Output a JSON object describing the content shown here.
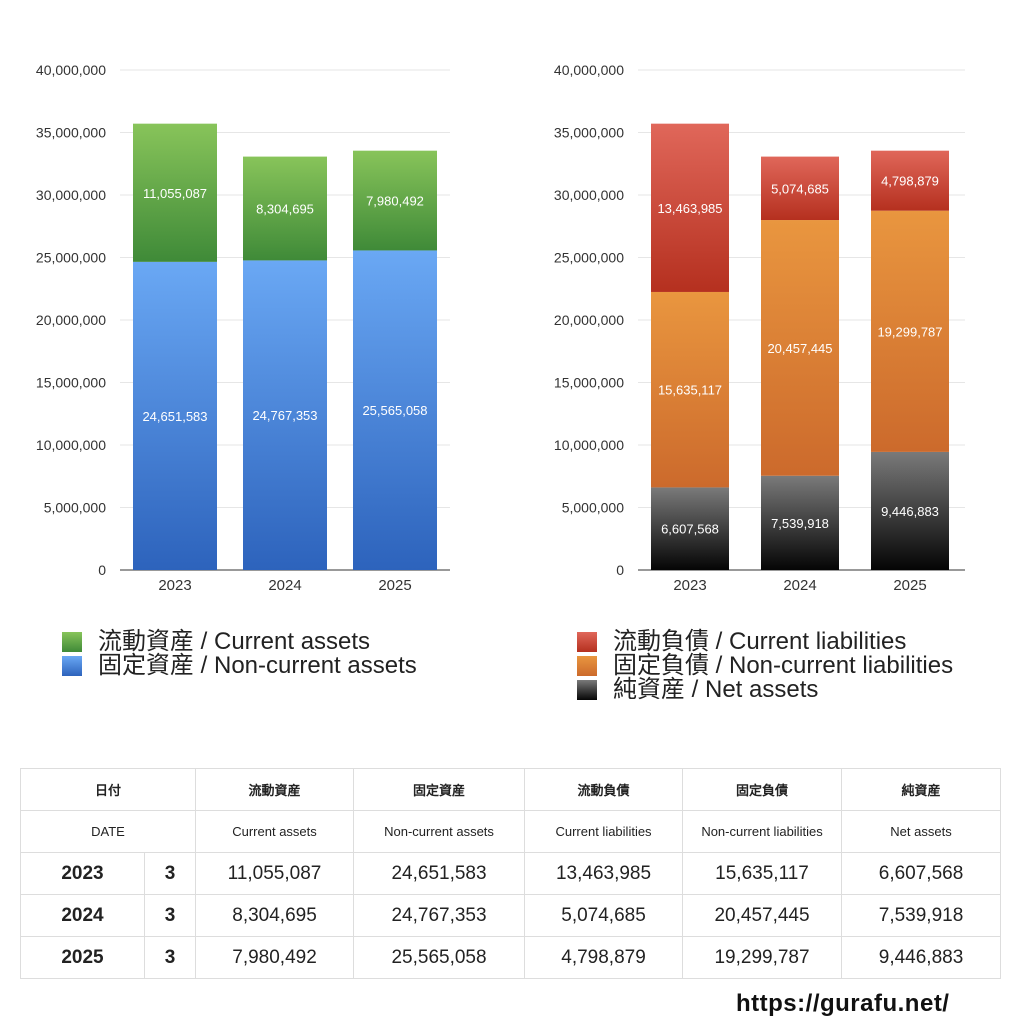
{
  "chart_data": [
    {
      "type": "bar",
      "stacked": true,
      "categories": [
        "2023",
        "2024",
        "2025"
      ],
      "series": [
        {
          "name": "固定資産 / Non-current assets",
          "values": [
            24651583,
            24767353,
            25565058
          ],
          "labels": [
            "24,651,583",
            "24,767,353",
            "25,565,058"
          ]
        },
        {
          "name": "流動資産 / Current assets",
          "values": [
            11055087,
            8304695,
            7980492
          ],
          "labels": [
            "11,055,087",
            "8,304,695",
            "7,980,492"
          ]
        }
      ],
      "ylim": [
        0,
        40000000
      ],
      "yticks": [
        "0",
        "5,000,000",
        "10,000,000",
        "15,000,000",
        "20,000,000",
        "25,000,000",
        "30,000,000",
        "35,000,000",
        "40,000,000"
      ],
      "legend": [
        "流動資産 / Current assets",
        "固定資産 / Non-current assets"
      ],
      "legend_position": "bottom",
      "grid": true
    },
    {
      "type": "bar",
      "stacked": true,
      "categories": [
        "2023",
        "2024",
        "2025"
      ],
      "series": [
        {
          "name": "純資産 / Net assets",
          "values": [
            6607568,
            7539918,
            9446883
          ],
          "labels": [
            "6,607,568",
            "7,539,918",
            "9,446,883"
          ]
        },
        {
          "name": "固定負債 / Non-current liabilities",
          "values": [
            15635117,
            20457445,
            19299787
          ],
          "labels": [
            "15,635,117",
            "20,457,445",
            "19,299,787"
          ]
        },
        {
          "name": "流動負債 / Current liabilities",
          "values": [
            13463985,
            5074685,
            4798879
          ],
          "labels": [
            "13,463,985",
            "5,074,685",
            "4,798,879"
          ]
        }
      ],
      "ylim": [
        0,
        40000000
      ],
      "yticks": [
        "0",
        "5,000,000",
        "10,000,000",
        "15,000,000",
        "20,000,000",
        "25,000,000",
        "30,000,000",
        "35,000,000",
        "40,000,000"
      ],
      "legend": [
        "流動負債 / Current liabilities",
        "固定負債 / Non-current liabilities",
        "純資産 / Net assets"
      ],
      "legend_position": "bottom",
      "grid": true
    }
  ],
  "colors": {
    "current_assets": [
      "#88c45a",
      "#3f8a38"
    ],
    "non_current_assets": [
      "#6aa8f4",
      "#2d63bc"
    ],
    "current_liabilities": [
      "#e0675a",
      "#b5301f"
    ],
    "non_current_liabilities": [
      "#e9963f",
      "#cc6a2c"
    ],
    "net_assets": [
      "#7a7a7a",
      "#050505"
    ]
  },
  "legend_left": {
    "current_assets": "流動資産 / Current assets",
    "non_current_assets": "固定資産 / Non-current assets"
  },
  "legend_right": {
    "current_liabilities": "流動負債 / Current liabilities",
    "non_current_liabilities": "固定負債 / Non-current liabilities",
    "net_assets": "純資産 / Net assets"
  },
  "table": {
    "header_jp": {
      "date": "日付",
      "current_assets": "流動資産",
      "non_current_assets": "固定資産",
      "current_liabilities": "流動負債",
      "non_current_liabilities": "固定負債",
      "net_assets": "純資産"
    },
    "header_en": {
      "date": "DATE",
      "current_assets": "Current assets",
      "non_current_assets": "Non-current assets",
      "current_liabilities": "Current liabilities",
      "non_current_liabilities": "Non-current liabilities",
      "net_assets": "Net assets"
    },
    "rows": [
      {
        "year": "2023",
        "month": "3",
        "current_assets": "11,055,087",
        "non_current_assets": "24,651,583",
        "current_liabilities": "13,463,985",
        "non_current_liabilities": "15,635,117",
        "net_assets": "6,607,568"
      },
      {
        "year": "2024",
        "month": "3",
        "current_assets": "8,304,695",
        "non_current_assets": "24,767,353",
        "current_liabilities": "5,074,685",
        "non_current_liabilities": "20,457,445",
        "net_assets": "7,539,918"
      },
      {
        "year": "2025",
        "month": "3",
        "current_assets": "7,980,492",
        "non_current_assets": "25,565,058",
        "current_liabilities": "4,798,879",
        "non_current_liabilities": "19,299,787",
        "net_assets": "9,446,883"
      }
    ]
  },
  "footer": {
    "url": "https://gurafu.net/"
  }
}
